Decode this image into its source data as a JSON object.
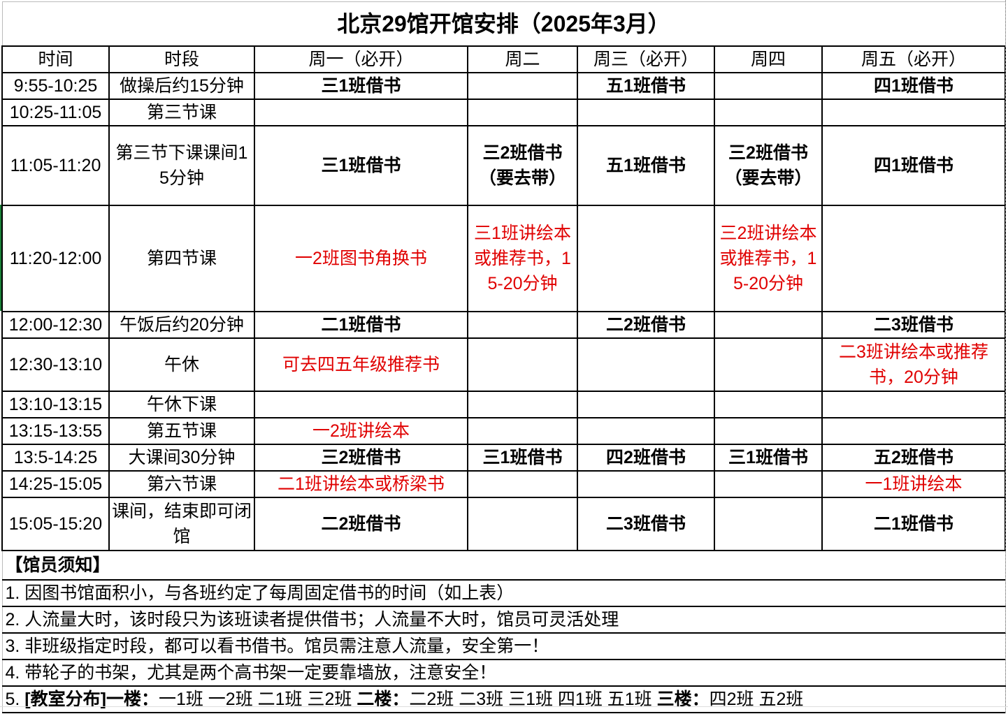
{
  "title": "北京29馆开馆安排（2025年3月）",
  "headers": [
    "时间",
    "时段",
    "周一（必开）",
    "周二",
    "周三（必开）",
    "周四",
    "周五（必开）"
  ],
  "colors": {
    "red_text": "#e00000",
    "border": "#000000",
    "accent_left": "#1a7f37"
  },
  "rows": [
    {
      "time": "9:55-10:25",
      "period": "做操后约15分钟",
      "cells": [
        {
          "text": "三1班借书",
          "style": "b"
        },
        {
          "text": "",
          "style": ""
        },
        {
          "text": "五1班借书",
          "style": "b"
        },
        {
          "text": "",
          "style": ""
        },
        {
          "text": "四1班借书",
          "style": "b"
        }
      ]
    },
    {
      "time": "10:25-11:05",
      "period": "第三节课",
      "cells": [
        {
          "text": "",
          "style": ""
        },
        {
          "text": "",
          "style": ""
        },
        {
          "text": "",
          "style": ""
        },
        {
          "text": "",
          "style": ""
        },
        {
          "text": "",
          "style": ""
        }
      ]
    },
    {
      "time": "11:05-11:20",
      "period": "第三节下课课间15分钟",
      "cells": [
        {
          "text": "三1班借书",
          "style": "b"
        },
        {
          "text": "三2班借书（要去带）",
          "style": "b"
        },
        {
          "text": "五1班借书",
          "style": "b"
        },
        {
          "text": "三2班借书（要去带）",
          "style": "b"
        },
        {
          "text": "四1班借书",
          "style": "b"
        }
      ]
    },
    {
      "time": "11:20-12:00",
      "period": "第四节课",
      "cells": [
        {
          "text": "一2班图书角换书",
          "style": "r"
        },
        {
          "text": "三1班讲绘本或推荐书，15-20分钟",
          "style": "r"
        },
        {
          "text": "",
          "style": ""
        },
        {
          "text": "三2班讲绘本或推荐书，15-20分钟",
          "style": "r"
        },
        {
          "text": "",
          "style": ""
        }
      ]
    },
    {
      "time": "12:00-12:30",
      "period": "午饭后约20分钟",
      "cells": [
        {
          "text": "二1班借书",
          "style": "b"
        },
        {
          "text": "",
          "style": ""
        },
        {
          "text": "二2班借书",
          "style": "b"
        },
        {
          "text": "",
          "style": ""
        },
        {
          "text": "二3班借书",
          "style": "b"
        }
      ]
    },
    {
      "time": "12:30-13:10",
      "period": "午休",
      "cells": [
        {
          "text": "可去四五年级推荐书",
          "style": "r"
        },
        {
          "text": "",
          "style": ""
        },
        {
          "text": "",
          "style": ""
        },
        {
          "text": "",
          "style": ""
        },
        {
          "text": "二3班讲绘本或推荐书，20分钟",
          "style": "r"
        }
      ]
    },
    {
      "time": "13:10-13:15",
      "period": "午休下课",
      "cells": [
        {
          "text": "",
          "style": ""
        },
        {
          "text": "",
          "style": ""
        },
        {
          "text": "",
          "style": ""
        },
        {
          "text": "",
          "style": ""
        },
        {
          "text": "",
          "style": ""
        }
      ]
    },
    {
      "time": "13:15-13:55",
      "period": "第五节课",
      "cells": [
        {
          "text": "一2班讲绘本",
          "style": "r"
        },
        {
          "text": "",
          "style": ""
        },
        {
          "text": "",
          "style": ""
        },
        {
          "text": "",
          "style": ""
        },
        {
          "text": "",
          "style": ""
        }
      ]
    },
    {
      "time": "13:5-14:25",
      "period": "大课间30分钟",
      "cells": [
        {
          "text": "三2班借书",
          "style": "b"
        },
        {
          "text": "三1班借书",
          "style": "b"
        },
        {
          "text": "四2班借书",
          "style": "b"
        },
        {
          "text": "三1班借书",
          "style": "b"
        },
        {
          "text": "五2班借书",
          "style": "b"
        }
      ]
    },
    {
      "time": "14:25-15:05",
      "period": "第六节课",
      "cells": [
        {
          "text": "二1班讲绘本或桥梁书",
          "style": "r"
        },
        {
          "text": "",
          "style": ""
        },
        {
          "text": "",
          "style": ""
        },
        {
          "text": "",
          "style": ""
        },
        {
          "text": "一1班讲绘本",
          "style": "r"
        }
      ]
    },
    {
      "time": "15:05-15:20",
      "period": "课间，结束即可闭馆",
      "cells": [
        {
          "text": "二2班借书",
          "style": "b"
        },
        {
          "text": "",
          "style": ""
        },
        {
          "text": "二3班借书",
          "style": "b"
        },
        {
          "text": "",
          "style": ""
        },
        {
          "text": "二1班借书",
          "style": "b"
        }
      ]
    }
  ],
  "notes_title": "【馆员须知】",
  "notes": [
    "1. 因图书馆面积小，与各班约定了每周固定借书的时间（如上表）",
    "2. 人流量大时，该时段只为该班读者提供借书；人流量不大时，馆员可灵活处理",
    "3. 非班级指定时段，都可以看书借书。馆员需注意人流量，安全第一！",
    "4. 带轮子的书架，尤其是两个高书架一定要靠墙放，注意安全！"
  ],
  "note5": [
    {
      "text": "5. ",
      "bold": false
    },
    {
      "text": "[教室分布]一楼：",
      "bold": true
    },
    {
      "text": "一1班 一2班 二1班 三2班 ",
      "bold": false
    },
    {
      "text": "二楼：",
      "bold": true
    },
    {
      "text": "二2班 二3班 三1班 四1班 五1班 ",
      "bold": false
    },
    {
      "text": "三楼：",
      "bold": true
    },
    {
      "text": "四2班 五2班",
      "bold": false
    }
  ]
}
